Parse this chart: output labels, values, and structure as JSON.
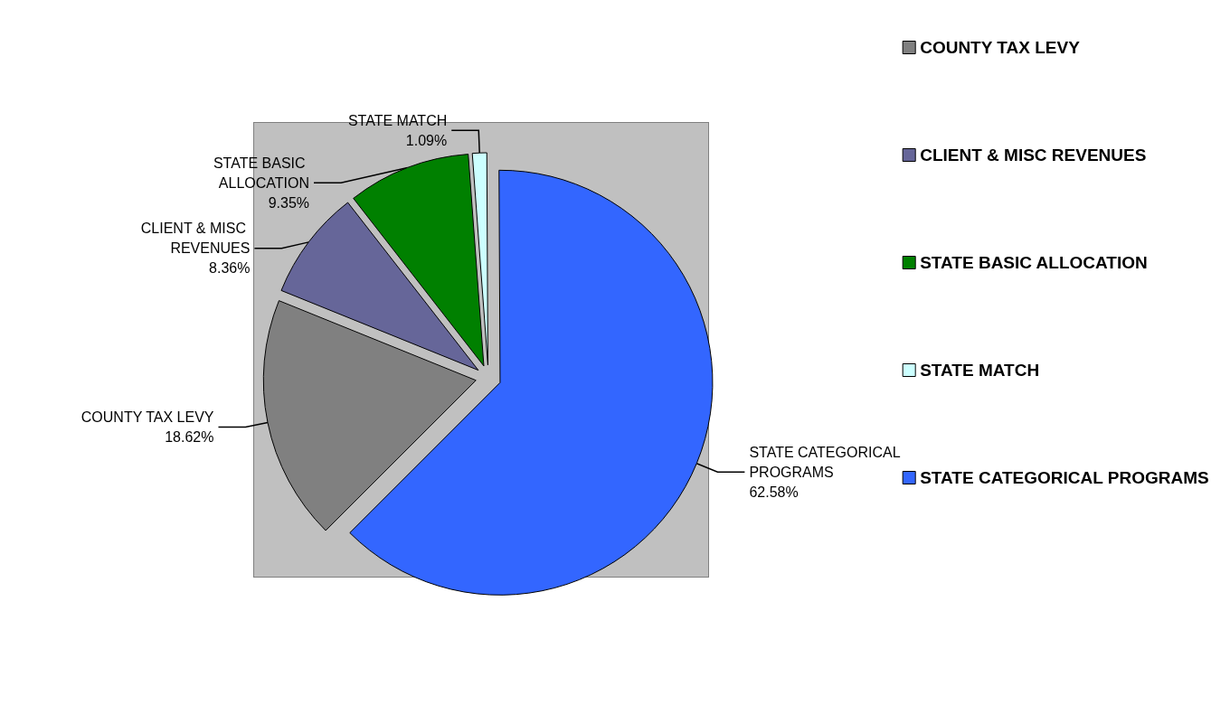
{
  "chart_data": {
    "type": "pie",
    "categories": [
      "COUNTY TAX LEVY",
      "CLIENT & MISC REVENUES",
      "STATE BASIC ALLOCATION",
      "STATE MATCH",
      "STATE CATEGORICAL PROGRAMS"
    ],
    "values": [
      18.62,
      8.36,
      9.35,
      1.09,
      62.58
    ],
    "colors": [
      "#808080",
      "#666699",
      "#008000",
      "#ccffff",
      "#3366ff"
    ],
    "legend": "right",
    "value_labels": [
      "18.62%",
      "8.36%",
      "9.35%",
      "1.09%",
      "62.58%"
    ]
  }
}
